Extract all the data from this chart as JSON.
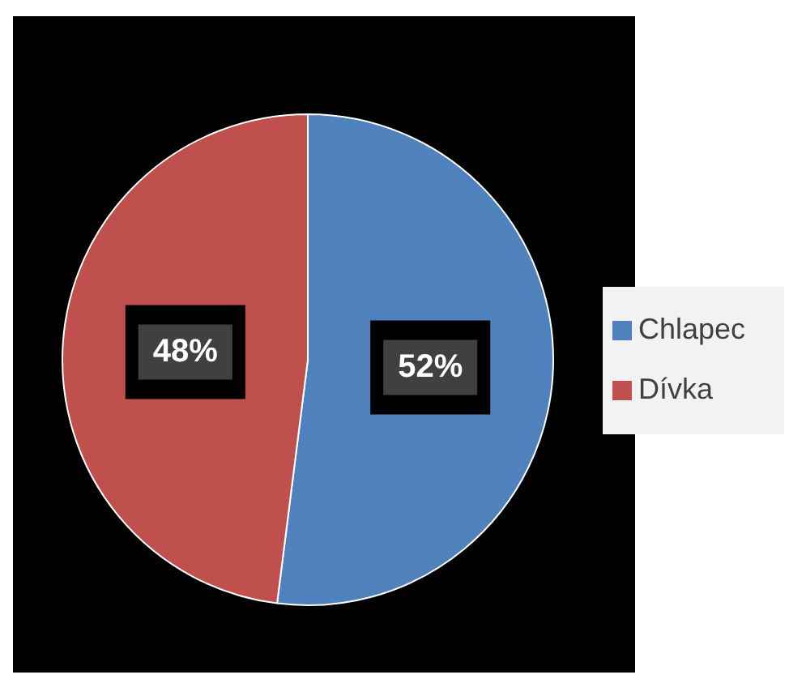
{
  "chart_data": {
    "type": "pie",
    "categories": [
      "Chlapec",
      "Dívka"
    ],
    "values": [
      52,
      48
    ],
    "colors": [
      "#4f81bd",
      "#c0504d"
    ],
    "value_labels": [
      "52%",
      "48%"
    ],
    "legend": "right"
  }
}
